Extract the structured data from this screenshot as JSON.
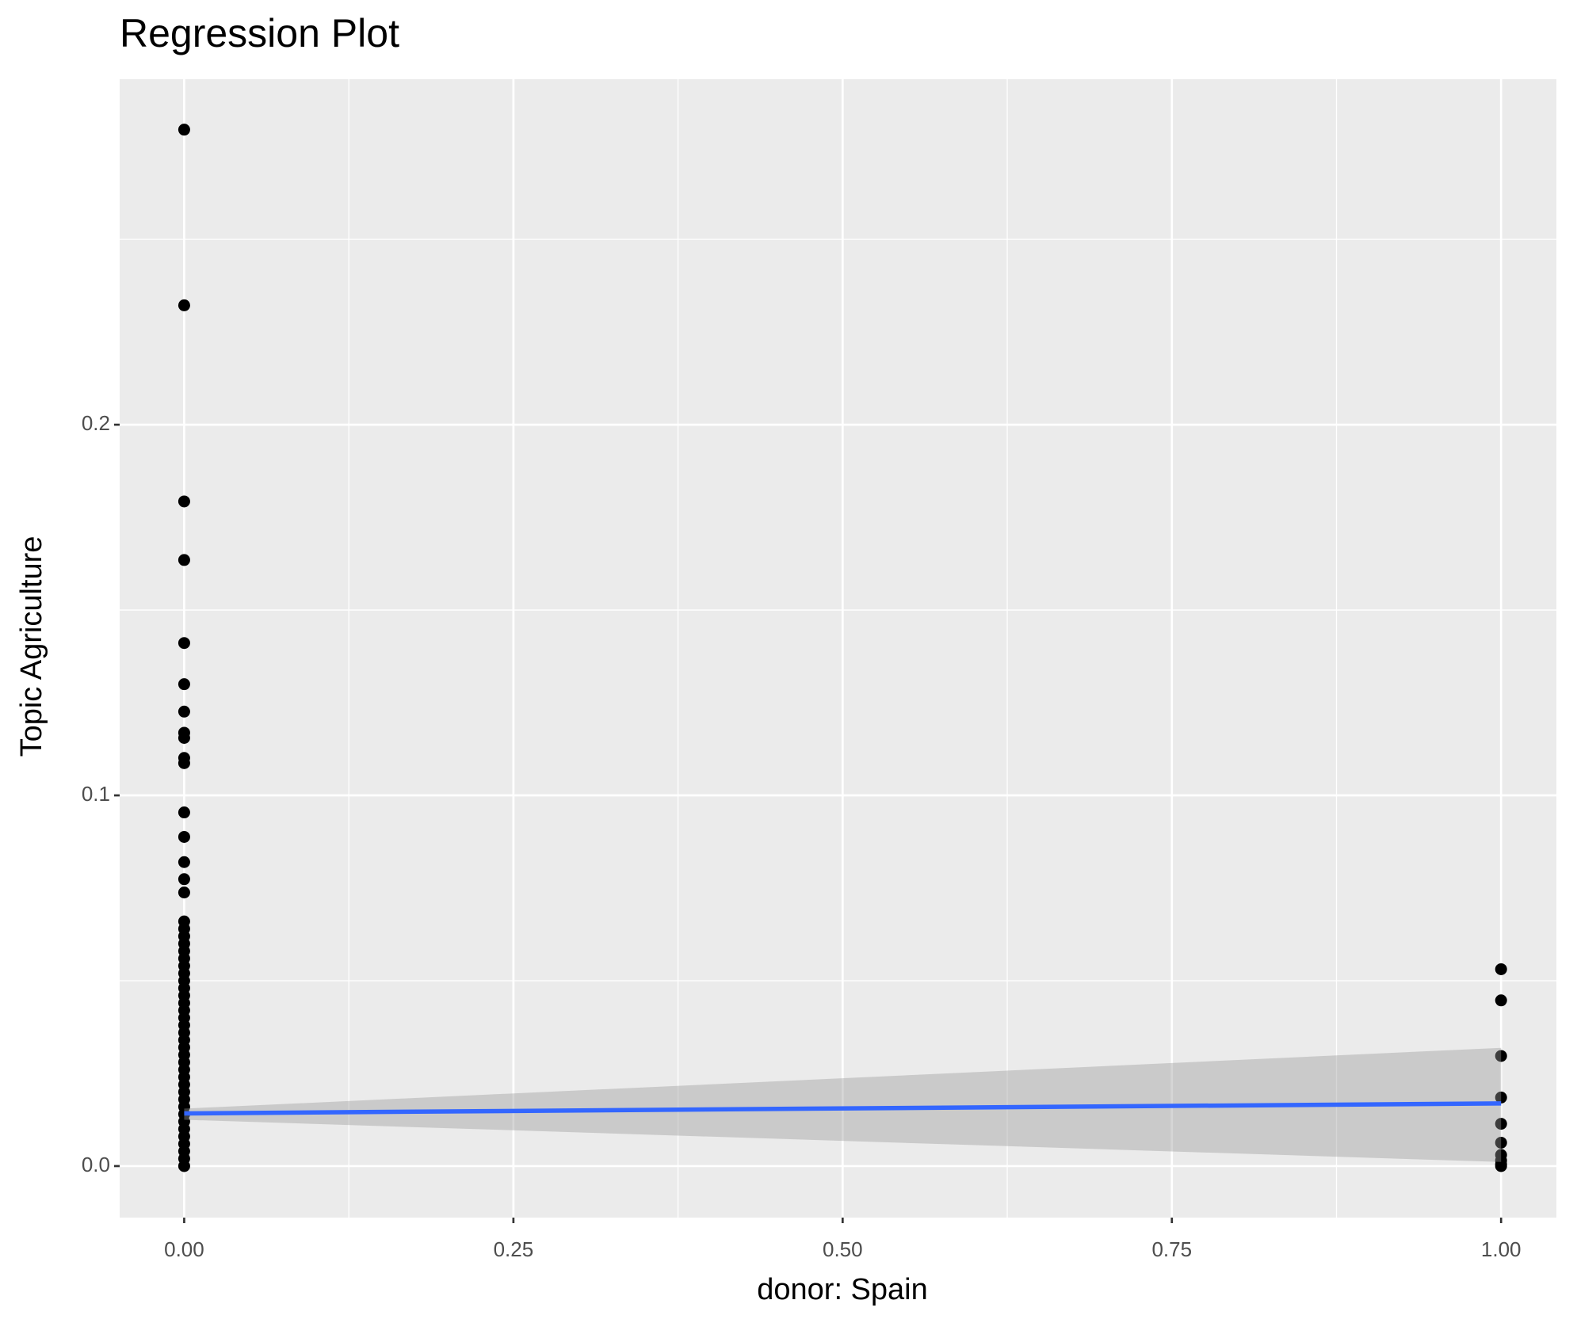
{
  "chart_data": {
    "type": "scatter",
    "title": "Regression Plot",
    "x_label": "donor: Spain",
    "y_label": "Topic Agriculture",
    "xlim": [
      -0.049,
      1.042
    ],
    "ylim": [
      -0.0139,
      0.2932
    ],
    "xticks": [
      {
        "value": 0,
        "label": "0.00"
      },
      {
        "value": 0.25,
        "label": "0.25"
      },
      {
        "value": 0.5,
        "label": "0.50"
      },
      {
        "value": 0.75,
        "label": "0.75"
      },
      {
        "value": 1,
        "label": "1.00"
      }
    ],
    "yticks": [
      {
        "value": 0,
        "label": "0.0"
      },
      0.1,
      0.2
    ],
    "minor_xticks": [
      0.125,
      0.375,
      0.625,
      0.875
    ],
    "minor_yticks": [
      0.05,
      0.15,
      0.25
    ],
    "grid": true,
    "points": {
      "color": "#000000",
      "x": [
        0,
        0,
        0,
        0,
        0,
        0,
        0,
        0,
        0,
        0,
        0,
        0,
        0,
        0,
        0,
        0,
        0,
        0,
        0,
        0,
        0,
        0,
        0,
        0,
        0,
        0,
        0,
        0,
        0,
        0,
        0,
        0,
        0,
        0,
        0,
        0,
        0,
        0,
        0,
        0,
        0,
        0,
        0,
        0,
        0,
        0,
        0,
        0,
        0,
        0,
        1,
        1,
        1,
        1,
        1,
        1,
        1,
        1,
        1,
        1
      ],
      "y": [
        0.2796,
        0.2322,
        0.1793,
        0.1635,
        0.1411,
        0.13,
        0.1226,
        0.1169,
        0.1155,
        0.1101,
        0.1087,
        0.0954,
        0.0888,
        0.082,
        0.0774,
        0.0738,
        0.066,
        0.064,
        0.062,
        0.06,
        0.058,
        0.056,
        0.054,
        0.052,
        0.05,
        0.048,
        0.046,
        0.044,
        0.042,
        0.04,
        0.038,
        0.036,
        0.034,
        0.032,
        0.03,
        0.028,
        0.026,
        0.024,
        0.022,
        0.02,
        0.018,
        0.016,
        0.014,
        0.012,
        0.01,
        0.008,
        0.006,
        0.004,
        0.002,
        0,
        0.0531,
        0.0447,
        0.0297,
        0.0185,
        0.0114,
        0.0063,
        0.003,
        0.0015,
        0.0005,
        0
      ]
    },
    "fit": {
      "color": "#3366ff",
      "band_color": "#999999",
      "x": [
        0,
        1
      ],
      "y": [
        0.0142,
        0.0169
      ],
      "lower": [
        0.0125,
        0.0011
      ],
      "upper": [
        0.0155,
        0.0319
      ]
    }
  }
}
